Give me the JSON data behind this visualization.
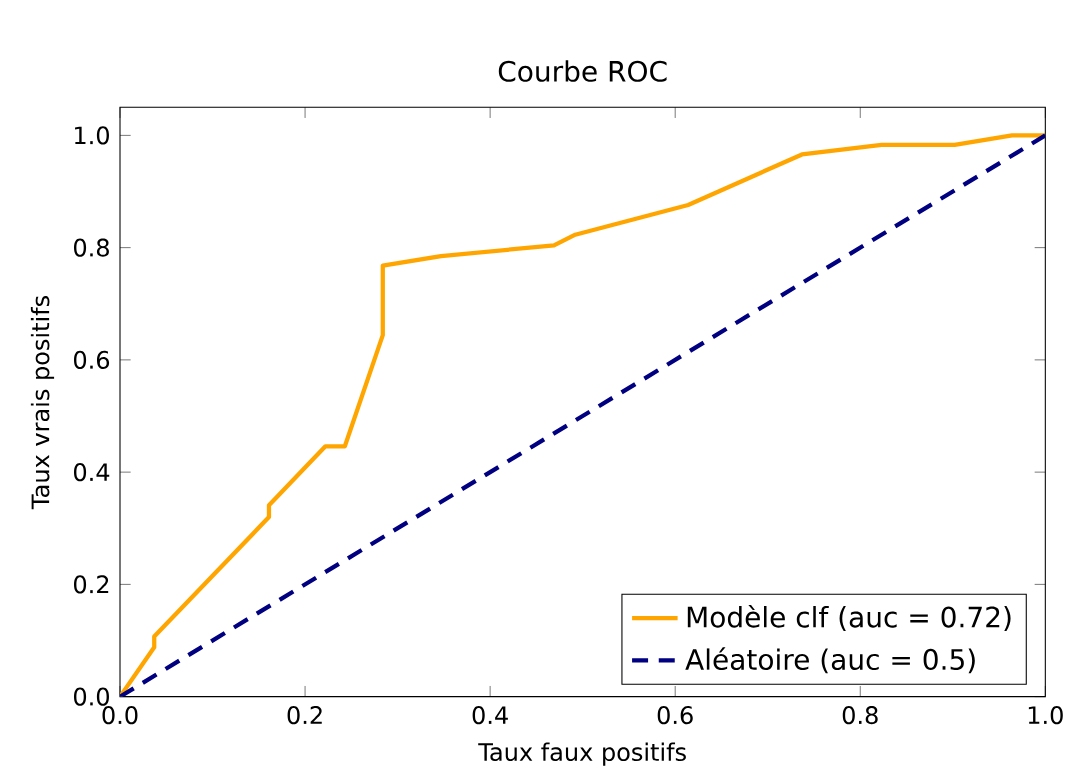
{
  "chart_data": {
    "type": "line",
    "title": "Courbe ROC",
    "xlabel": "Taux faux positifs",
    "ylabel": "Taux vrais positifs",
    "xlim": [
      0,
      1
    ],
    "ylim": [
      0,
      1.05
    ],
    "xticks": [
      {
        "value": 0,
        "label": "0.0"
      },
      {
        "value": 0.2,
        "label": "0.2"
      },
      {
        "value": 0.4,
        "label": "0.4"
      },
      {
        "value": 0.6,
        "label": "0.6"
      },
      {
        "value": 0.8,
        "label": "0.8"
      },
      {
        "value": 1,
        "label": "1.0"
      }
    ],
    "yticks": [
      {
        "value": 0,
        "label": "0.0"
      },
      {
        "value": 0.2,
        "label": "0.2"
      },
      {
        "value": 0.4,
        "label": "0.4"
      },
      {
        "value": 0.6,
        "label": "0.6"
      },
      {
        "value": 0.8,
        "label": "0.8"
      },
      {
        "value": 1,
        "label": "1.0"
      }
    ],
    "legend": "bottom right",
    "grid": false,
    "series": [
      {
        "name": "Modèle clf (auc = 0.72)",
        "color": "#ffa500",
        "line_style": "solid",
        "x": [
          0,
          0.037,
          0.037,
          0.161,
          0.161,
          0.222,
          0.243,
          0.284,
          0.284,
          0.347,
          0.469,
          0.492,
          0.614,
          0.737,
          0.823,
          0.902,
          0.964,
          1
        ],
        "values": [
          0,
          0.088,
          0.107,
          0.32,
          0.341,
          0.446,
          0.446,
          0.644,
          0.768,
          0.785,
          0.804,
          0.823,
          0.876,
          0.966,
          0.983,
          0.983,
          1,
          1
        ]
      },
      {
        "name": "Aléatoire (auc = 0.5)",
        "color": "#000080",
        "line_style": "dashed",
        "x": [
          0,
          1
        ],
        "values": [
          0,
          1
        ]
      }
    ]
  }
}
